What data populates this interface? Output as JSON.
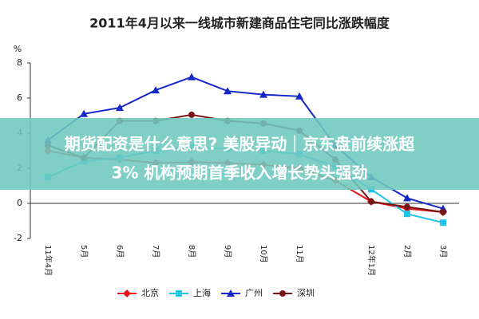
{
  "chart_data": {
    "type": "line",
    "title": "2011年4月以来一线城市新建商品住宅同比涨跌幅度",
    "y_label": "%",
    "categories": [
      "11年4月",
      "5月",
      "6月",
      "7月",
      "8月",
      "9月",
      "10月",
      "11月",
      null,
      "12年1月",
      "2月",
      "3月"
    ],
    "ylim": [
      -2,
      8
    ],
    "yticks": [
      -2,
      0,
      2,
      4,
      6,
      8
    ],
    "grid": false,
    "series": [
      {
        "name": "北京",
        "color": "#e8141b",
        "marker": "diamond",
        "values": [
          3,
          2.6,
          2.5,
          2.3,
          2.35,
          2.3,
          2.2,
          2.0,
          1.3,
          0.1,
          -0.3,
          -0.5
        ]
      },
      {
        "name": "上海",
        "color": "#1fc4e8",
        "marker": "square",
        "values": [
          1.5,
          2.4,
          2.6,
          3.0,
          3.2,
          3.1,
          3.0,
          2.8,
          2.1,
          0.8,
          -0.6,
          -1.1
        ]
      },
      {
        "name": "广州",
        "color": "#1428c8",
        "marker": "triangle",
        "values": [
          3.6,
          5.1,
          5.45,
          6.45,
          7.2,
          6.4,
          6.2,
          6.1,
          3.3,
          1.5,
          0.3,
          -0.3
        ]
      },
      {
        "name": "深圳",
        "color": "#7a1414",
        "marker": "circle",
        "values": [
          3.3,
          2.6,
          4.7,
          4.7,
          5.05,
          4.7,
          4.55,
          4.15,
          2.5,
          0.1,
          -0.2,
          -0.5
        ]
      }
    ]
  },
  "overlay": {
    "lines": [
      "期货配资是什么意思? 美股异动｜京东盘前续涨超",
      "3% 机构预期首季收入增长势头强劲"
    ]
  }
}
